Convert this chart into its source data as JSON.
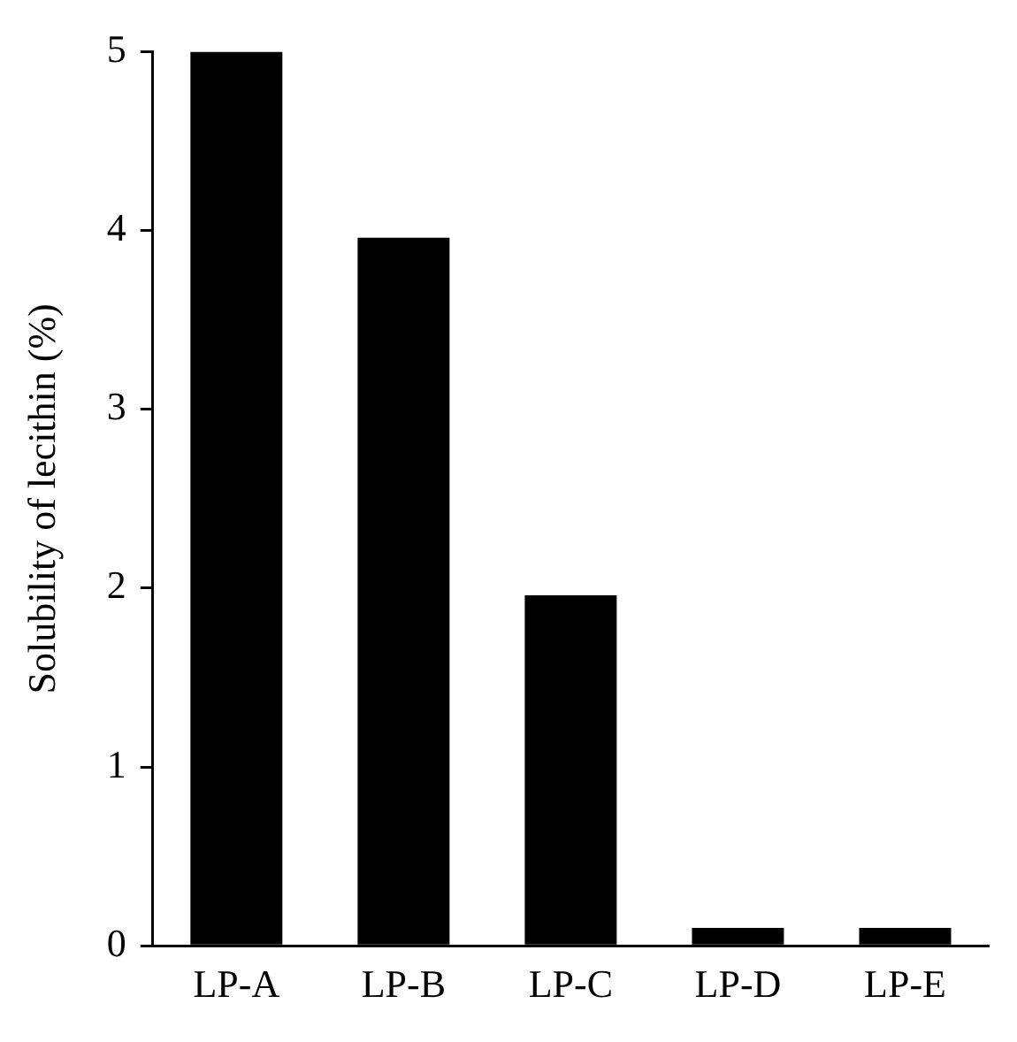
{
  "chart_data": {
    "type": "bar",
    "ylabel": "Solubility of lecithin (%)",
    "categories": [
      "LP-A",
      "LP-B",
      "LP-C",
      "LP-D",
      "LP-E"
    ],
    "values": [
      5.0,
      3.96,
      1.96,
      0.1,
      0.1
    ],
    "color": "#000000",
    "ylim": [
      0,
      5
    ],
    "yticks": [
      0,
      1,
      2,
      3,
      4,
      5
    ],
    "grid": false,
    "legend": false
  }
}
